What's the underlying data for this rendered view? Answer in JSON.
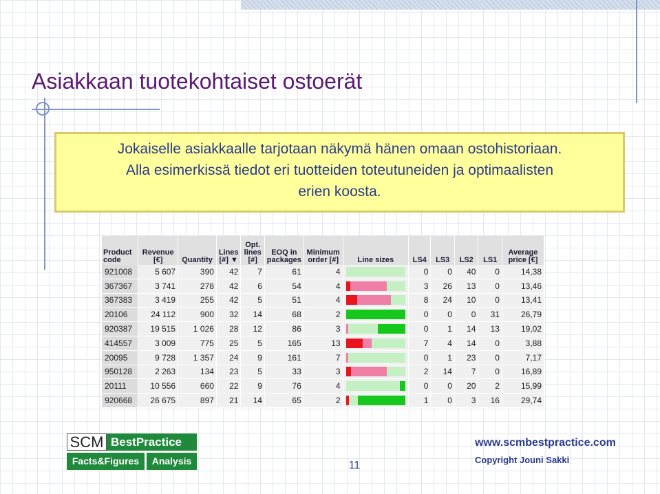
{
  "title": "Asiakkaan tuotekohtaiset ostoerät",
  "callout": {
    "line1": "Jokaiselle asiakkaalle tarjotaan näkymä hänen omaan ostohistoriaan.",
    "line2": "Alla esimerkissä tiedot eri tuotteiden toteutuneiden ja optimaalisten",
    "line3": "erien koosta."
  },
  "table": {
    "headers": {
      "product_code": "Product code",
      "revenue": "Revenue [€]",
      "quantity": "Quantity",
      "lines": "Lines [#] ▼",
      "opt_lines": "Opt. lines [#]",
      "eoq": "EOQ in packages",
      "min_order": "Minimum order [#]",
      "line_sizes": "Line sizes",
      "ls4": "LS4",
      "ls3": "LS3",
      "ls2": "LS2",
      "ls1": "LS1",
      "avg_price": "Average price [€]"
    },
    "rows": [
      {
        "code": "921008",
        "revenue": "5 607",
        "quantity": "390",
        "lines": "42",
        "opt": "7",
        "eoq": "61",
        "min": "4",
        "ls4": "0",
        "ls3": "0",
        "ls2": "40",
        "ls1": "0",
        "price": "14,38"
      },
      {
        "code": "367367",
        "revenue": "3 741",
        "quantity": "278",
        "lines": "42",
        "opt": "6",
        "eoq": "54",
        "min": "4",
        "ls4": "3",
        "ls3": "26",
        "ls2": "13",
        "ls1": "0",
        "price": "13,46"
      },
      {
        "code": "367383",
        "revenue": "3 419",
        "quantity": "255",
        "lines": "42",
        "opt": "5",
        "eoq": "51",
        "min": "4",
        "ls4": "8",
        "ls3": "24",
        "ls2": "10",
        "ls1": "0",
        "price": "13,41"
      },
      {
        "code": "20106",
        "revenue": "24 112",
        "quantity": "900",
        "lines": "32",
        "opt": "14",
        "eoq": "68",
        "min": "2",
        "ls4": "0",
        "ls3": "0",
        "ls2": "0",
        "ls1": "31",
        "price": "26,79"
      },
      {
        "code": "920387",
        "revenue": "19 515",
        "quantity": "1 026",
        "lines": "28",
        "opt": "12",
        "eoq": "86",
        "min": "3",
        "ls4": "0",
        "ls3": "1",
        "ls2": "14",
        "ls1": "13",
        "price": "19,02"
      },
      {
        "code": "414557",
        "revenue": "3 009",
        "quantity": "775",
        "lines": "25",
        "opt": "5",
        "eoq": "165",
        "min": "13",
        "ls4": "7",
        "ls3": "4",
        "ls2": "14",
        "ls1": "0",
        "price": "3,88"
      },
      {
        "code": "20095",
        "revenue": "9 728",
        "quantity": "1 357",
        "lines": "24",
        "opt": "9",
        "eoq": "161",
        "min": "7",
        "ls4": "0",
        "ls3": "1",
        "ls2": "23",
        "ls1": "0",
        "price": "7,17"
      },
      {
        "code": "950128",
        "revenue": "2 263",
        "quantity": "134",
        "lines": "23",
        "opt": "5",
        "eoq": "33",
        "min": "3",
        "ls4": "2",
        "ls3": "14",
        "ls2": "7",
        "ls1": "0",
        "price": "16,89"
      },
      {
        "code": "20111",
        "revenue": "10 556",
        "quantity": "660",
        "lines": "22",
        "opt": "9",
        "eoq": "76",
        "min": "4",
        "ls4": "0",
        "ls3": "0",
        "ls2": "20",
        "ls1": "2",
        "price": "15,99"
      },
      {
        "code": "920668",
        "revenue": "26 675",
        "quantity": "897",
        "lines": "21",
        "opt": "14",
        "eoq": "65",
        "min": "2",
        "ls4": "1",
        "ls3": "0",
        "ls2": "3",
        "ls1": "16",
        "price": "29,74"
      }
    ]
  },
  "colors": {
    "ls4": "#e8141e",
    "ls3": "#ef7fa6",
    "ls2": "#c4f0c4",
    "ls1": "#16c81c"
  },
  "logo": {
    "scm": "SCM",
    "best_practice": "BestPractice",
    "facts": "Facts&Figures",
    "analysis": "Analysis"
  },
  "footer": {
    "page_number": "11",
    "website": "www.scmbestpractice.com",
    "copyright": "Copyright Jouni Sakki"
  }
}
